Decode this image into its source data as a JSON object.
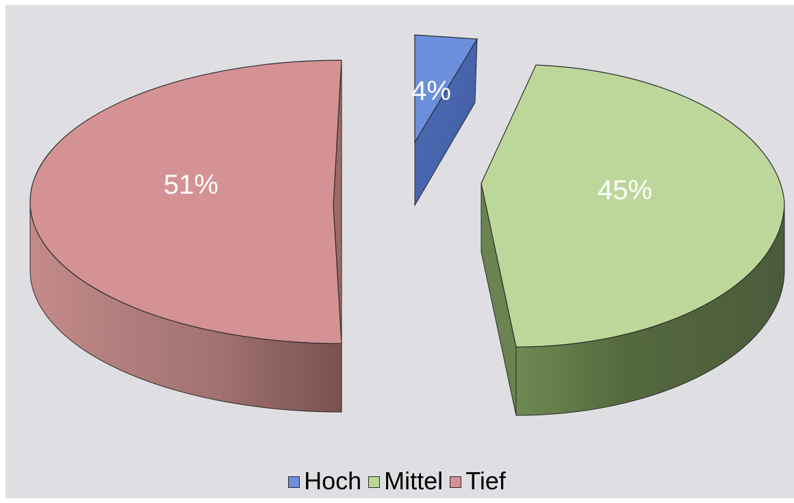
{
  "chart_data": {
    "type": "pie",
    "style": "3d-exploded",
    "categories": [
      "Hoch",
      "Mittel",
      "Tief"
    ],
    "values": [
      4,
      45,
      51
    ],
    "labels": [
      "4%",
      "45%",
      "51%"
    ],
    "colors": [
      "#6b8fdc",
      "#bdd79a",
      "#d49294"
    ],
    "side_colors": [
      "#4a67b0",
      "#5d7048",
      "#9c6a69"
    ],
    "legend_position": "bottom",
    "background": "#dfdfe3"
  }
}
